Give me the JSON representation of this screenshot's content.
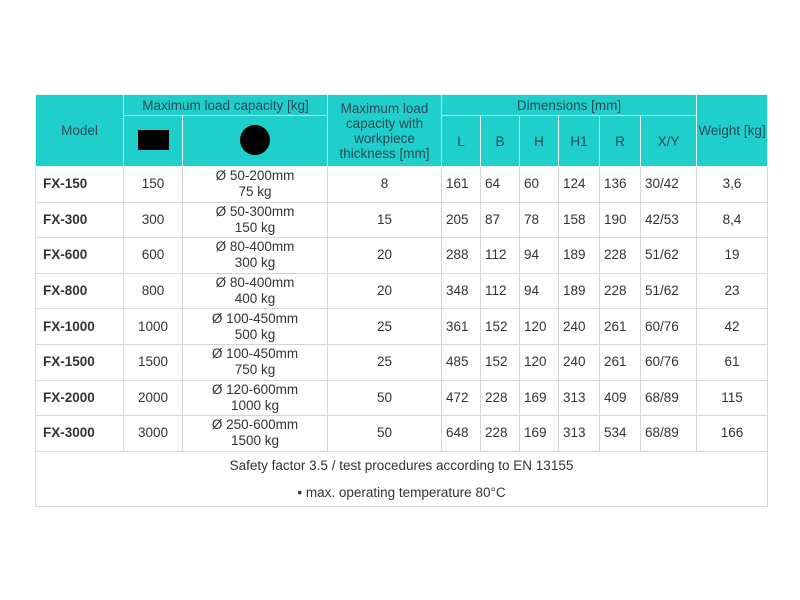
{
  "header": {
    "model": "Model",
    "max_load": "Maximum load capacity [kg]",
    "rect_icon": "rectangular-workpiece-icon",
    "round_icon": "round-workpiece-icon",
    "thickness": "Maximum load capacity with workpiece thickness [mm]",
    "dimensions": "Dimensions [mm]",
    "dims": [
      "L",
      "B",
      "H",
      "H1",
      "R",
      "X/Y"
    ],
    "weight": "Weight [kg]",
    "header_color": "#1fcfcc"
  },
  "rows": [
    {
      "model": "FX-150",
      "rect": "150",
      "round_range": "Ø 50-200mm",
      "round_load": "75 kg",
      "thickness": "8",
      "L": "161",
      "B": "64",
      "H": "60",
      "H1": "124",
      "R": "136",
      "XY": "30/42",
      "weight": "3,6"
    },
    {
      "model": "FX-300",
      "rect": "300",
      "round_range": "Ø 50-300mm",
      "round_load": "150 kg",
      "thickness": "15",
      "L": "205",
      "B": "87",
      "H": "78",
      "H1": "158",
      "R": "190",
      "XY": "42/53",
      "weight": "8,4"
    },
    {
      "model": "FX-600",
      "rect": "600",
      "round_range": "Ø 80-400mm",
      "round_load": "300 kg",
      "thickness": "20",
      "L": "288",
      "B": "112",
      "H": "94",
      "H1": "189",
      "R": "228",
      "XY": "51/62",
      "weight": "19"
    },
    {
      "model": "FX-800",
      "rect": "800",
      "round_range": "Ø 80-400mm",
      "round_load": "400 kg",
      "thickness": "20",
      "L": "348",
      "B": "112",
      "H": "94",
      "H1": "189",
      "R": "228",
      "XY": "51/62",
      "weight": "23"
    },
    {
      "model": "FX-1000",
      "rect": "1000",
      "round_range": "Ø 100-450mm",
      "round_load": "500 kg",
      "thickness": "25",
      "L": "361",
      "B": "152",
      "H": "120",
      "H1": "240",
      "R": "261",
      "XY": "60/76",
      "weight": "42"
    },
    {
      "model": "FX-1500",
      "rect": "1500",
      "round_range": "Ø 100-450mm",
      "round_load": "750 kg",
      "thickness": "25",
      "L": "485",
      "B": "152",
      "H": "120",
      "H1": "240",
      "R": "261",
      "XY": "60/76",
      "weight": "61"
    },
    {
      "model": "FX-2000",
      "rect": "2000",
      "round_range": "Ø 120-600mm",
      "round_load": "1000 kg",
      "thickness": "50",
      "L": "472",
      "B": "228",
      "H": "169",
      "H1": "313",
      "R": "409",
      "XY": "68/89",
      "weight": "115"
    },
    {
      "model": "FX-3000",
      "rect": "3000",
      "round_range": "Ø 250-600mm",
      "round_load": "1500 kg",
      "thickness": "50",
      "L": "648",
      "B": "228",
      "H": "169",
      "H1": "313",
      "R": "534",
      "XY": "68/89",
      "weight": "166"
    }
  ],
  "footer": {
    "line1": "Safety factor 3.5 / test procedures according to EN 13155",
    "line2": "• max. operating temperature 80°C"
  }
}
